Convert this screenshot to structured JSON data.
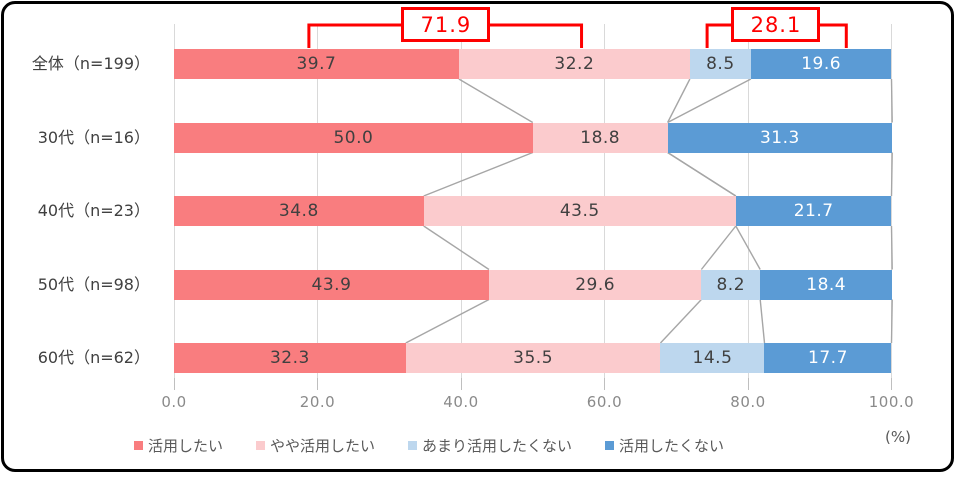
{
  "chart_data": {
    "type": "bar",
    "orientation": "horizontal-stacked",
    "title": "",
    "categories": [
      "全体（n=199）",
      "30代（n=16）",
      "40代（n=23）",
      "50代（n=98）",
      "60代（n=62）"
    ],
    "series": [
      {
        "name": "活用したい",
        "color": "#f97d7f",
        "label_color": "#404040",
        "values": [
          39.7,
          50.0,
          34.8,
          43.9,
          32.3
        ]
      },
      {
        "name": "やや活用したい",
        "color": "#fbcbcd",
        "label_color": "#404040",
        "values": [
          32.2,
          18.8,
          43.5,
          29.6,
          35.5
        ]
      },
      {
        "name": "あまり活用したくない",
        "color": "#bdd7ee",
        "label_color": "#404040",
        "values": [
          8.5,
          0.0,
          0.0,
          8.2,
          14.5
        ]
      },
      {
        "name": "活用したくない",
        "color": "#5b9bd5",
        "label_color": "#ffffff",
        "values": [
          19.6,
          31.3,
          21.7,
          18.4,
          17.7
        ]
      }
    ],
    "xlim": [
      0,
      100
    ],
    "x_ticks": [
      0,
      20,
      40,
      60,
      80,
      100
    ],
    "x_tick_labels": [
      "0.0",
      "20.0",
      "40.0",
      "60.0",
      "80.0",
      "100.0"
    ],
    "unit_label": "(%)",
    "grid": true,
    "legend_position": "bottom",
    "callouts": [
      {
        "value": "71.9",
        "covers_series": [
          "活用したい",
          "やや活用したい"
        ],
        "bracket_left_pct": 18.8,
        "bracket_right_pct": 56.8,
        "center_pct": 37.9
      },
      {
        "value": "28.1",
        "covers_series": [
          "あまり活用したくない",
          "活用したくない"
        ],
        "bracket_left_pct": 74.3,
        "bracket_right_pct": 93.7,
        "center_pct": 83.9
      }
    ],
    "colors": {
      "callout": "#fe0000",
      "connector": "#a6a6a6",
      "gridline": "#d9d9d9",
      "tick": "#bfbfbf",
      "axis_text": "#8a8a8a",
      "legend_text": "#595959",
      "category_text": "#404040",
      "frame_border": "#000000"
    }
  }
}
